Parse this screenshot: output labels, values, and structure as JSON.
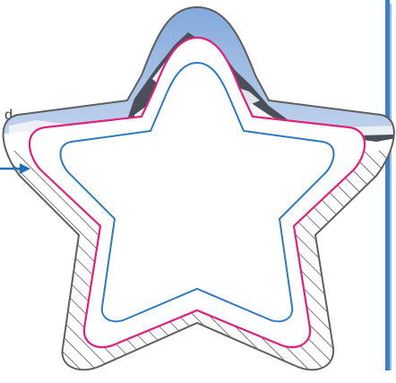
{
  "diagram": {
    "label_partial": "d",
    "colors": {
      "outline": "#5f5f5f",
      "bleed_hatch": "#2b2b2b",
      "trim_line": "#e0207d",
      "safe_line": "#2e7ac2",
      "pointer": "#1f6fbf",
      "edge_bar": "#3d7fc4",
      "sky": "#a9c4e8",
      "rock": "#4a4f5a",
      "snow": "#f4f6f8"
    },
    "icons": [
      "pointer-arrow-icon",
      "mountain-photo-icon",
      "hatch-pattern-icon"
    ]
  }
}
